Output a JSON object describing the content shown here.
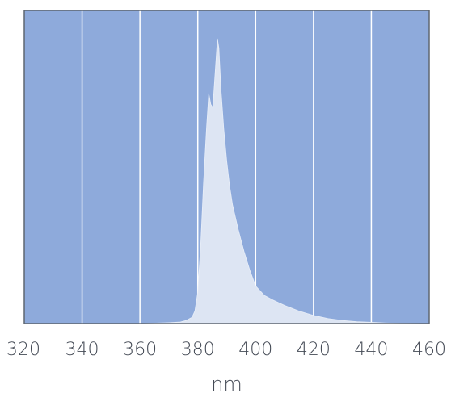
{
  "chart_data": {
    "type": "area",
    "title": "",
    "xlabel": "nm",
    "ylabel": "",
    "xlim": [
      320,
      460
    ],
    "ylim": [
      0,
      1
    ],
    "x_ticks": [
      "320",
      "340",
      "360",
      "380",
      "400",
      "420",
      "440",
      "460"
    ],
    "grid": "vertical",
    "legend": "none",
    "colors": {
      "plot_bg": "#8eaadb",
      "fill": "#dde5f3",
      "grid": "#ffffff",
      "frame": "#5f6670",
      "text": "#444a55"
    },
    "series": [
      {
        "x": [
          320,
          360,
          370,
          374,
          376,
          378,
          379,
          380,
          381,
          382,
          383,
          383.8,
          384.5,
          385.2,
          386,
          386.8,
          387.3,
          388,
          389,
          390,
          391,
          392,
          394,
          396,
          398,
          400,
          403,
          406,
          410,
          415,
          420,
          425,
          430,
          435,
          440,
          445,
          450,
          460
        ],
        "y": [
          0,
          0,
          0.003,
          0.005,
          0.01,
          0.02,
          0.04,
          0.1,
          0.25,
          0.45,
          0.62,
          0.735,
          0.7,
          0.69,
          0.8,
          0.91,
          0.88,
          0.75,
          0.62,
          0.52,
          0.44,
          0.38,
          0.3,
          0.23,
          0.17,
          0.12,
          0.09,
          0.075,
          0.058,
          0.04,
          0.026,
          0.016,
          0.01,
          0.006,
          0.004,
          0.002,
          0.001,
          0
        ]
      }
    ]
  }
}
